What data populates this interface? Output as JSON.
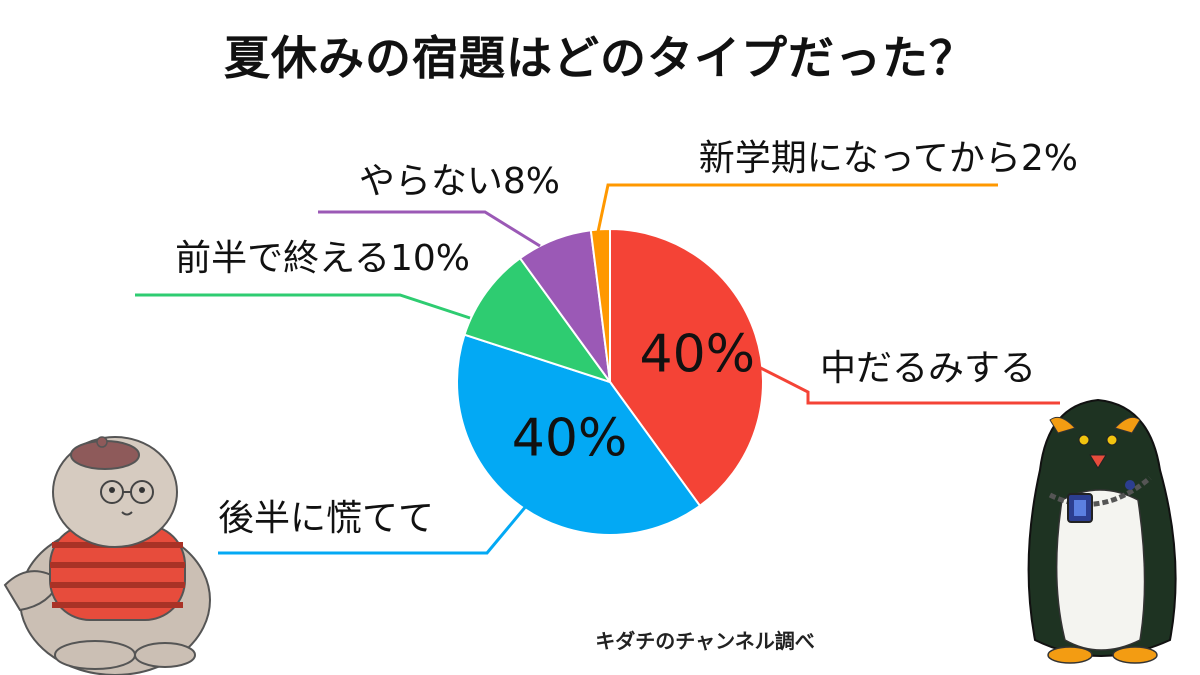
{
  "title": "夏休みの宿題はどのタイプだった？",
  "credit": "キダチのチャンネル調べ",
  "chart_data": {
    "type": "pie",
    "title": "夏休みの宿題はどのタイプだった？",
    "slices": [
      {
        "label": "中だるみする",
        "value": 40,
        "display": "40%",
        "color": "#f44336"
      },
      {
        "label": "後半に慌てて",
        "value": 40,
        "display": "40%",
        "color": "#03a9f4"
      },
      {
        "label": "前半で終える",
        "value": 10,
        "display": "10%",
        "color": "#2ecc71"
      },
      {
        "label": "やらない",
        "value": 8,
        "display": "8%",
        "color": "#9b59b6"
      },
      {
        "label": "新学期になってから",
        "value": 2,
        "display": "2%",
        "color": "#ff9800"
      }
    ],
    "start": "12 o'clock",
    "direction": "clockwise",
    "legend": "none"
  }
}
